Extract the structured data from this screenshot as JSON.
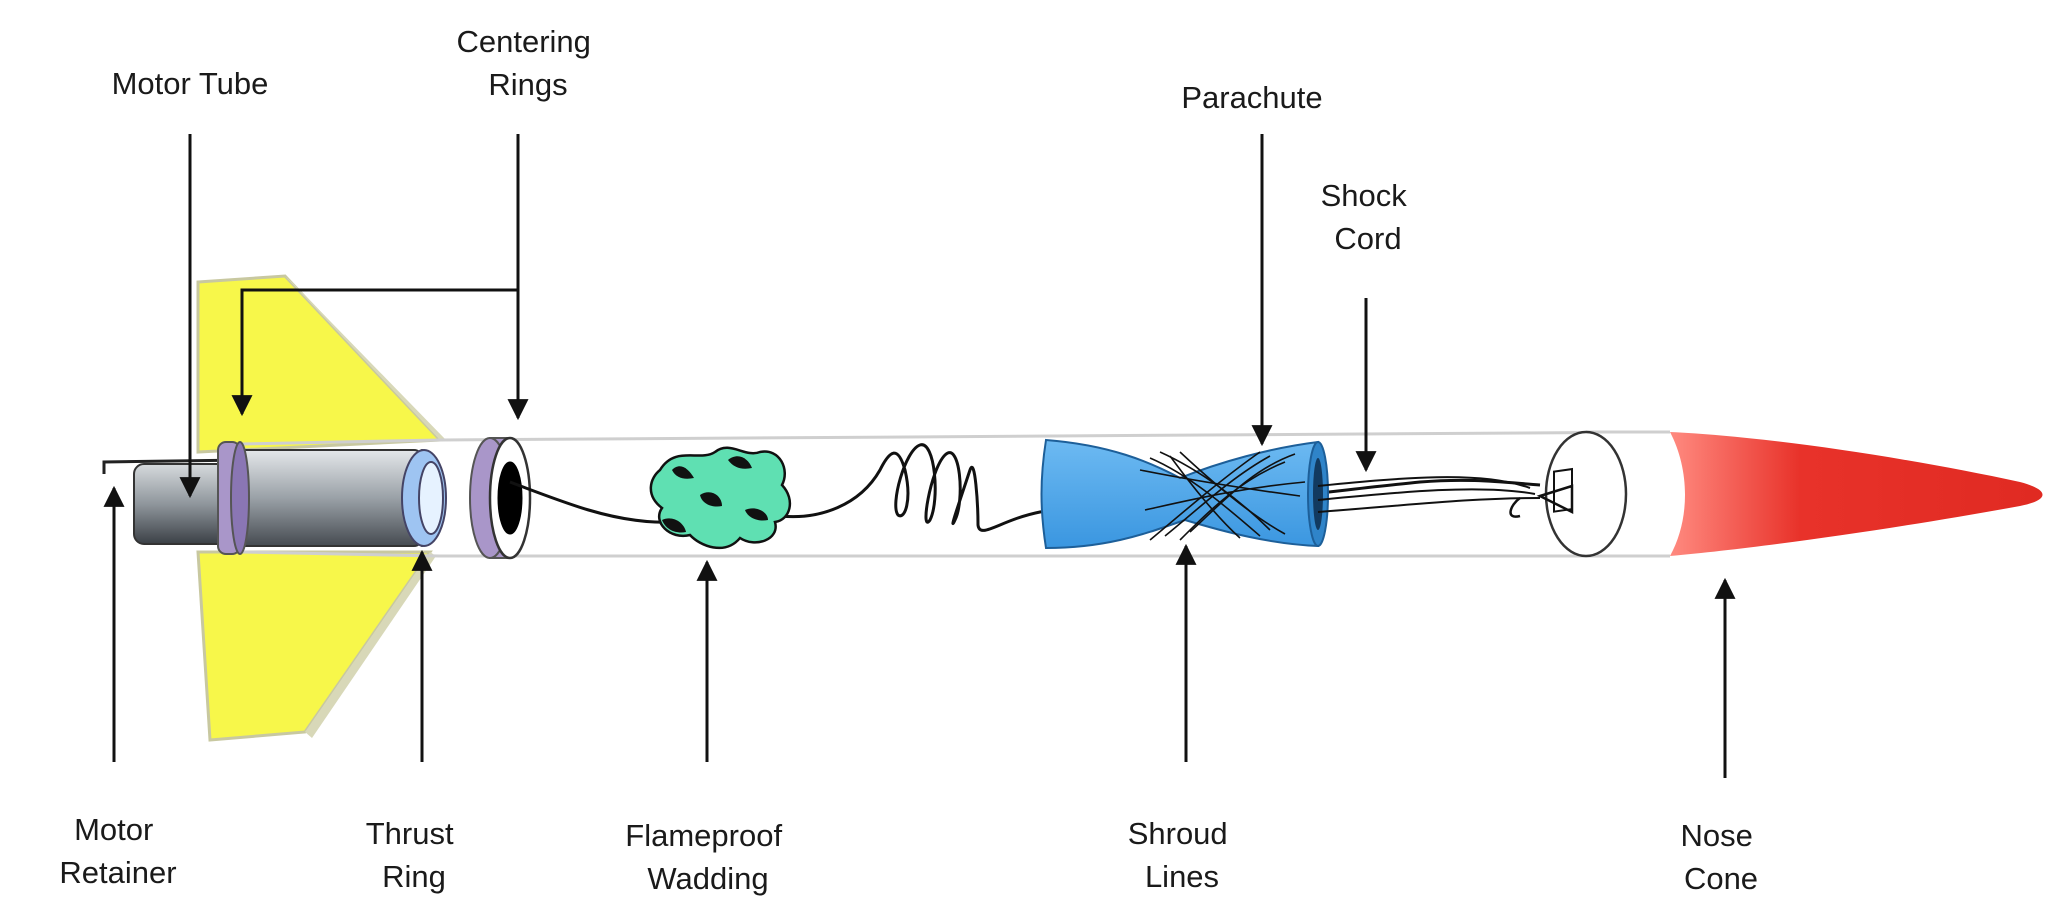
{
  "labels": {
    "motor_tube": "Motor Tube",
    "centering_rings": [
      "Centering",
      "Rings"
    ],
    "parachute": "Parachute",
    "shock_cord": [
      "Shock",
      "Cord"
    ],
    "motor_retainer": [
      "Motor",
      "Retainer"
    ],
    "thrust_ring": [
      "Thrust",
      "Ring"
    ],
    "flameproof_wadding": [
      "Flameproof",
      "Wadding"
    ],
    "shroud_lines": [
      "Shroud",
      "Lines"
    ],
    "nose_cone": [
      "Nose",
      "Cone"
    ]
  },
  "colors": {
    "fins": "#f7f74a",
    "motor": "#8f969c",
    "centering_ring": "#a996c9",
    "thrust_ring": "#9ec4f2",
    "wadding": "#5fe0b2",
    "parachute": "#48a6ec",
    "nose_cone": "#e8322a"
  }
}
